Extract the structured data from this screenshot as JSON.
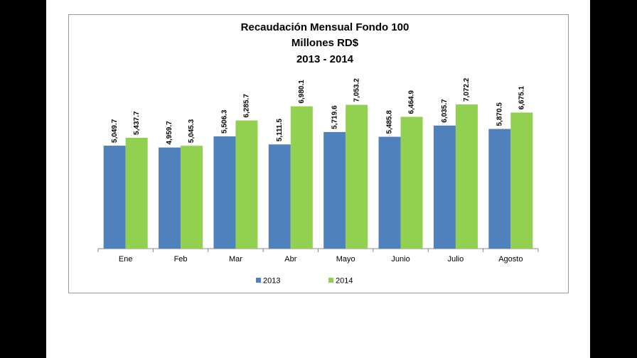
{
  "chart_data": {
    "type": "bar",
    "title": [
      "Recaudación Mensual Fondo 100",
      "Millones RD$",
      "2013 - 2014"
    ],
    "categories": [
      "Ene",
      "Feb",
      "Mar",
      "Abr",
      "Mayo",
      "Junio",
      "Julio",
      "Agosto"
    ],
    "series": [
      {
        "name": "2013",
        "color": "#4f81bd",
        "values": [
          5049.7,
          4959.7,
          5506.3,
          5111.5,
          5719.6,
          5485.8,
          6035.7,
          5870.5
        ],
        "value_labels": [
          "5,049.7",
          "4,959.7",
          "5,506.3",
          "5,111.5",
          "5,719.6",
          "5,485.8",
          "6,035.7",
          "5,870.5"
        ]
      },
      {
        "name": "2014",
        "color": "#92d050",
        "values": [
          5437.7,
          5045.3,
          6285.7,
          6980.1,
          7053.2,
          6464.9,
          7072.2,
          6675.1
        ],
        "value_labels": [
          "5,437.7",
          "5,045.3",
          "6,285.7",
          "6,980.1",
          "7,053.2",
          "6,464.9",
          "7,072.2",
          "6,675.1"
        ]
      }
    ],
    "legend": "bottom"
  }
}
